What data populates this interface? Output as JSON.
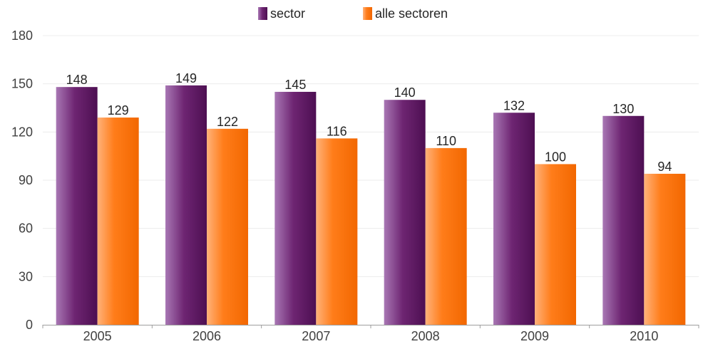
{
  "chart_data": {
    "type": "bar",
    "categories": [
      "2005",
      "2006",
      "2007",
      "2008",
      "2009",
      "2010"
    ],
    "series": [
      {
        "name": "sector",
        "values": [
          148,
          149,
          145,
          140,
          132,
          130
        ],
        "color": "#6b1d6b"
      },
      {
        "name": "alle sectoren",
        "values": [
          129,
          122,
          116,
          110,
          100,
          94
        ],
        "color": "#ff7a10"
      }
    ],
    "ylim": [
      0,
      180
    ],
    "yticks": [
      "0",
      "30",
      "60",
      "90",
      "120",
      "150",
      "180"
    ],
    "grid": true,
    "legend_position": "top-center"
  }
}
